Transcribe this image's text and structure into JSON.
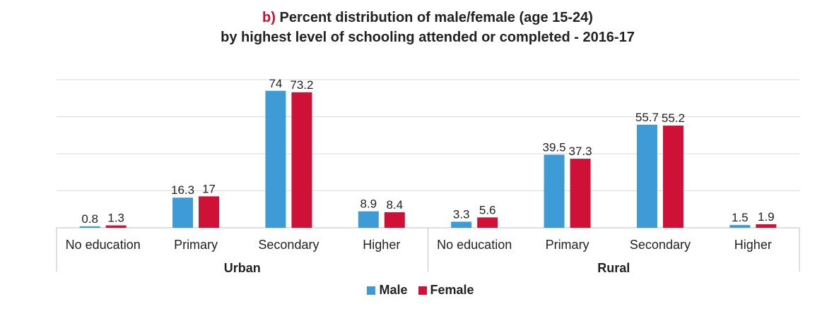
{
  "chart_data": {
    "type": "bar",
    "title_prefix": "b)",
    "title_line1": "Percent distribution of male/female (age 15-24)",
    "title_line2": "by highest level of schooling attended or completed - 2016-17",
    "groups": [
      {
        "name": "Urban",
        "categories": [
          "No education",
          "Primary",
          "Secondary",
          "Higher"
        ],
        "series": [
          {
            "name": "Male",
            "values": [
              0.8,
              16.3,
              74,
              8.9
            ]
          },
          {
            "name": "Female",
            "values": [
              1.3,
              17,
              73.2,
              8.4
            ]
          }
        ]
      },
      {
        "name": "Rural",
        "categories": [
          "No education",
          "Primary",
          "Secondary",
          "Higher"
        ],
        "series": [
          {
            "name": "Male",
            "values": [
              3.3,
              39.5,
              55.7,
              1.5
            ]
          },
          {
            "name": "Female",
            "values": [
              5.6,
              37.3,
              55.2,
              1.9
            ]
          }
        ]
      }
    ],
    "ylim": [
      0,
      80
    ],
    "grid": true,
    "legend_position": "bottom-center",
    "legend": [
      "Male",
      "Female"
    ],
    "colors": {
      "Male": "#3f9bd6",
      "Female": "#d01137"
    }
  }
}
